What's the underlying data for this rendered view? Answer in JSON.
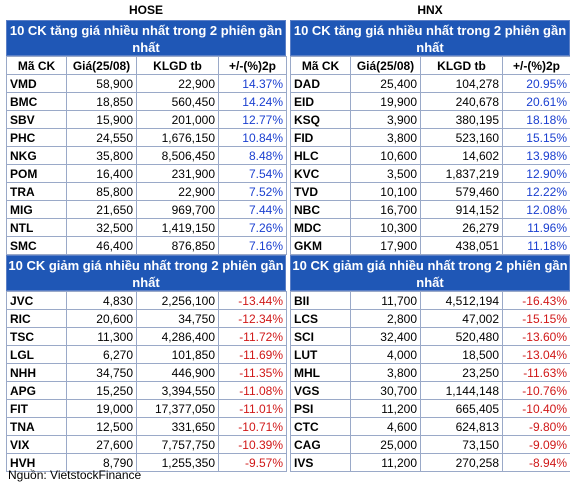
{
  "source": "Nguồn: VietstockFinance",
  "columns": [
    "Mã CK",
    "Giá(25/08)",
    "KLGD tb",
    "+/-(%)2p"
  ],
  "hose": {
    "title": "HOSE",
    "gainers_title": "10 CK tăng giá nhiều nhất trong 2 phiên gần nhất",
    "gainers": [
      [
        "VMD",
        "58,900",
        "22,900",
        "14.37%"
      ],
      [
        "BMC",
        "18,850",
        "560,450",
        "14.24%"
      ],
      [
        "SBV",
        "15,900",
        "201,000",
        "12.77%"
      ],
      [
        "PHC",
        "24,550",
        "1,676,150",
        "10.84%"
      ],
      [
        "NKG",
        "35,800",
        "8,506,450",
        "8.48%"
      ],
      [
        "POM",
        "16,400",
        "231,900",
        "7.54%"
      ],
      [
        "TRA",
        "85,800",
        "22,900",
        "7.52%"
      ],
      [
        "MIG",
        "21,650",
        "969,700",
        "7.44%"
      ],
      [
        "NTL",
        "32,500",
        "1,419,150",
        "7.26%"
      ],
      [
        "SMC",
        "46,400",
        "876,850",
        "7.16%"
      ]
    ],
    "losers_title": "10 CK giảm giá nhiều nhất trong 2 phiên gần nhất",
    "losers": [
      [
        "JVC",
        "4,830",
        "2,256,100",
        "-13.44%"
      ],
      [
        "RIC",
        "20,600",
        "34,750",
        "-12.34%"
      ],
      [
        "TSC",
        "11,300",
        "4,286,400",
        "-11.72%"
      ],
      [
        "LGL",
        "6,270",
        "101,850",
        "-11.69%"
      ],
      [
        "NHH",
        "34,750",
        "446,900",
        "-11.35%"
      ],
      [
        "APG",
        "15,250",
        "3,394,550",
        "-11.08%"
      ],
      [
        "FIT",
        "19,000",
        "17,377,050",
        "-11.01%"
      ],
      [
        "TNA",
        "12,500",
        "331,650",
        "-10.71%"
      ],
      [
        "VIX",
        "27,600",
        "7,757,750",
        "-10.39%"
      ],
      [
        "HVH",
        "8,790",
        "1,255,350",
        "-9.57%"
      ]
    ]
  },
  "hnx": {
    "title": "HNX",
    "gainers_title": "10 CK tăng giá nhiều nhất trong 2 phiên gần nhất",
    "gainers": [
      [
        "DAD",
        "25,400",
        "104,278",
        "20.95%"
      ],
      [
        "EID",
        "19,900",
        "240,678",
        "20.61%"
      ],
      [
        "KSQ",
        "3,900",
        "380,195",
        "18.18%"
      ],
      [
        "FID",
        "3,800",
        "523,160",
        "15.15%"
      ],
      [
        "HLC",
        "10,600",
        "14,602",
        "13.98%"
      ],
      [
        "KVC",
        "3,500",
        "1,837,219",
        "12.90%"
      ],
      [
        "TVD",
        "10,100",
        "579,460",
        "12.22%"
      ],
      [
        "NBC",
        "16,700",
        "914,152",
        "12.08%"
      ],
      [
        "MDC",
        "10,300",
        "26,279",
        "11.96%"
      ],
      [
        "GKM",
        "17,900",
        "438,051",
        "11.18%"
      ]
    ],
    "losers_title": "10 CK giảm giá nhiều nhất trong 2 phiên gần nhất",
    "losers": [
      [
        "BII",
        "11,700",
        "4,512,194",
        "-16.43%"
      ],
      [
        "LCS",
        "2,800",
        "47,002",
        "-15.15%"
      ],
      [
        "SCI",
        "32,400",
        "520,480",
        "-13.60%"
      ],
      [
        "LUT",
        "4,000",
        "18,500",
        "-13.04%"
      ],
      [
        "MHL",
        "3,800",
        "23,250",
        "-11.63%"
      ],
      [
        "VGS",
        "30,700",
        "1,144,148",
        "-10.76%"
      ],
      [
        "PSI",
        "11,200",
        "665,405",
        "-10.40%"
      ],
      [
        "CTC",
        "4,600",
        "624,813",
        "-9.80%"
      ],
      [
        "CAG",
        "25,000",
        "73,150",
        "-9.09%"
      ],
      [
        "IVS",
        "11,200",
        "270,258",
        "-8.94%"
      ]
    ]
  }
}
